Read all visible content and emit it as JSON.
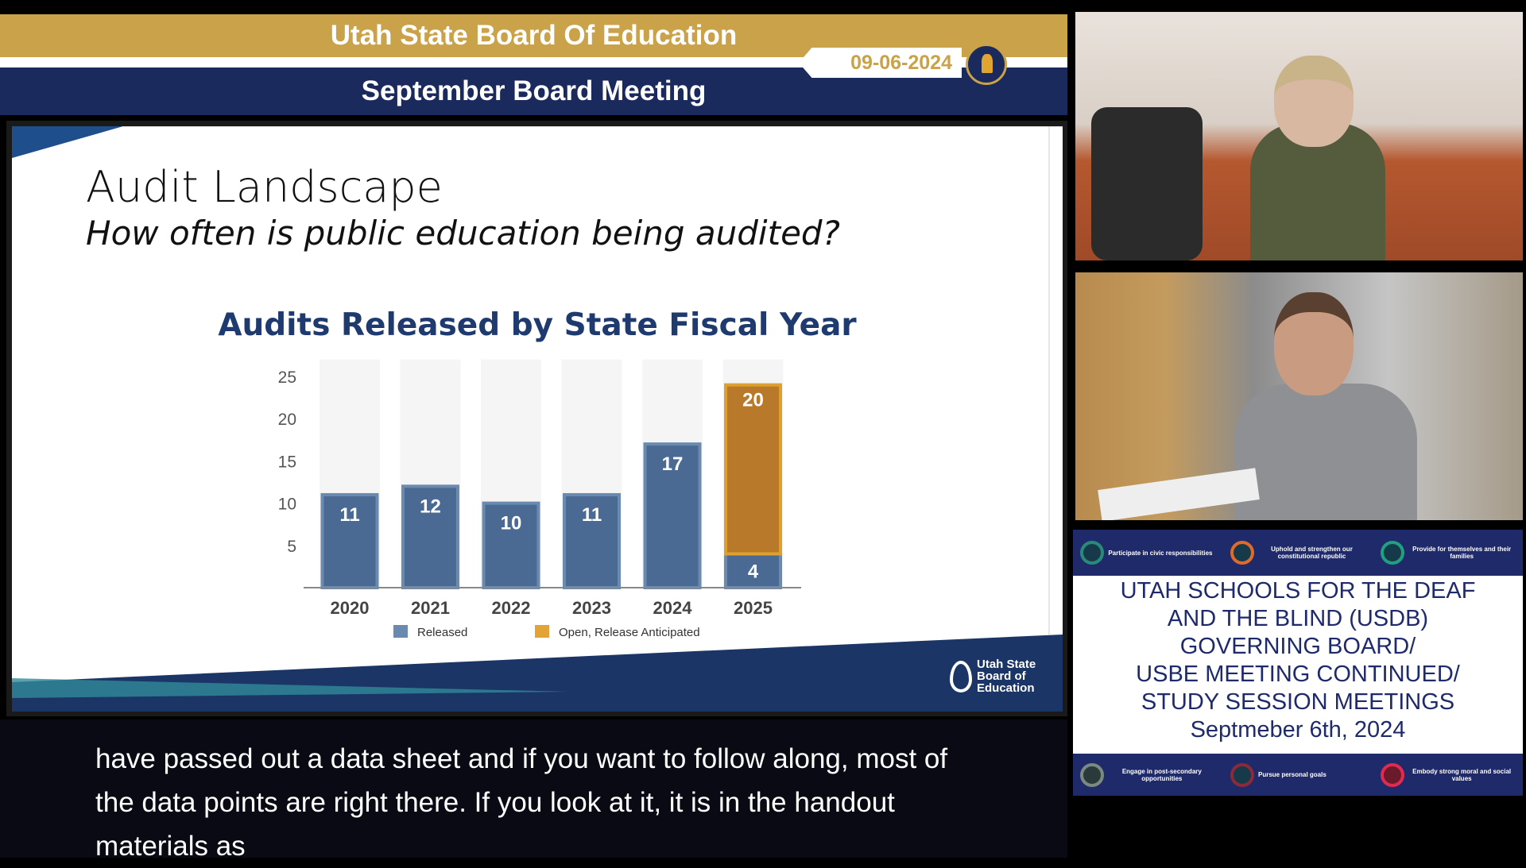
{
  "header": {
    "title": "Utah State Board Of Education",
    "subtitle": "September Board Meeting",
    "date": "09-06-2024"
  },
  "slide": {
    "title": "Audit Landscape",
    "subtitle": "How often is public education being audited?",
    "logo_text": [
      "Utah State",
      "Board of",
      "Education"
    ]
  },
  "chart_data": {
    "type": "bar",
    "stacked": true,
    "title": "Audits Released by State Fiscal Year",
    "categories": [
      "2020",
      "2021",
      "2022",
      "2023",
      "2024",
      "2025"
    ],
    "series": [
      {
        "name": "Released",
        "values": [
          11,
          12,
          10,
          11,
          17,
          4
        ],
        "color": "#4a6a94"
      },
      {
        "name": "Open, Release Anticipated",
        "values": [
          0,
          0,
          0,
          0,
          0,
          20
        ],
        "color": "#b87a2a"
      }
    ],
    "yticks": [
      5,
      10,
      15,
      20,
      25
    ],
    "ylim": [
      0,
      27
    ],
    "legend": "bottom"
  },
  "caption": {
    "lines": [
      "have passed out a data sheet and if you want to follow along, most of",
      "the data points are right there. If you look at it, it is in the handout",
      "materials as"
    ]
  },
  "usdb": {
    "top_values": [
      "Participate in civic responsibilities",
      "Uphold and strengthen our constitutional republic",
      "Provide for themselves and their families"
    ],
    "bottom_values": [
      "Engage in post-secondary opportunities",
      "Pursue personal goals",
      "Embody strong moral and social values"
    ],
    "title_lines": [
      "UTAH SCHOOLS FOR THE DEAF",
      "AND THE BLIND (USDB)",
      "GOVERNING BOARD/",
      "USBE MEETING CONTINUED/",
      "STUDY SESSION MEETINGS",
      "Septmeber 6th, 2024"
    ]
  }
}
